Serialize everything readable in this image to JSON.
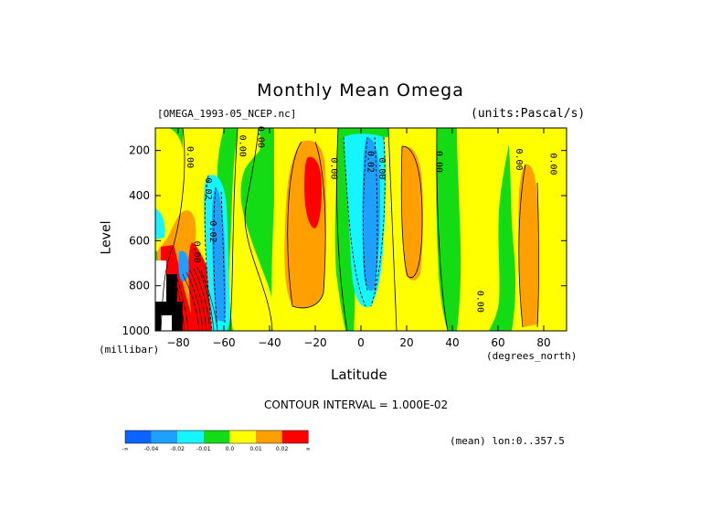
{
  "chart_data": {
    "type": "heatmap",
    "title": "Monthly Mean Omega",
    "dataset": "[OMEGA_1993-05_NCEP.nc]",
    "units": "(units:Pascal/s)",
    "xlabel": "Latitude",
    "x_unit": "(degrees_north)",
    "ylabel": "Level",
    "y_unit": "(millibar)",
    "xlim": [
      -90,
      90
    ],
    "ylim": [
      1000,
      100
    ],
    "x_ticks": [
      -80,
      -60,
      -40,
      -20,
      0,
      20,
      40,
      60,
      80
    ],
    "y_ticks": [
      200,
      400,
      600,
      800,
      1000
    ],
    "contour_interval": "CONTOUR INTERVAL = 1.000E-02",
    "mean_note": "(mean) lon:0..357.5",
    "colorbar": {
      "colors": [
        "#0a64ff",
        "#1ea0ff",
        "#14f5ff",
        "#14dc14",
        "#ffff00",
        "#ffa000",
        "#ff0000"
      ],
      "labels": [
        "-∞",
        "-0.04",
        "-0.02",
        "-0.01",
        "0.0",
        "0.01",
        "0.02",
        "∞"
      ]
    },
    "contour_labels": [
      {
        "text": "0.00",
        "lat": -76,
        "lev": 230
      },
      {
        "text": "0.00",
        "lat": -53,
        "lev": 180
      },
      {
        "text": "0.00",
        "lat": -45,
        "lev": 140
      },
      {
        "text": "0.02",
        "lat": -68,
        "lev": 370
      },
      {
        "text": "0.02",
        "lat": -66,
        "lev": 560
      },
      {
        "text": "0.00",
        "lat": -13,
        "lev": 280
      },
      {
        "text": "0.02",
        "lat": 3,
        "lev": 250
      },
      {
        "text": "0.00",
        "lat": 8,
        "lev": 280
      },
      {
        "text": "0.00",
        "lat": 33,
        "lev": 250
      },
      {
        "text": "0.00",
        "lat": 51,
        "lev": 870
      },
      {
        "text": "0.00",
        "lat": 68,
        "lev": 240
      },
      {
        "text": "0.00",
        "lat": 83,
        "lev": 260
      },
      {
        "text": "0.00",
        "lat": -73,
        "lev": 650
      }
    ]
  }
}
